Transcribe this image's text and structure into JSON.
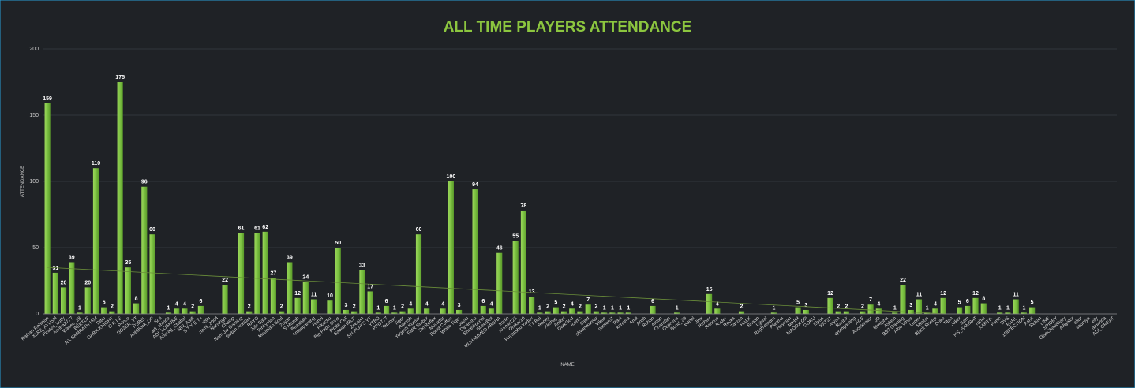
{
  "chart_data": {
    "type": "bar",
    "title": "ALL TIME PLAYERS ATTENDANCE",
    "x_label": "NAME",
    "y_label": "ATTENDANCE",
    "categories": [
      "Raihan Rahman",
      "XLR8_AYUSH",
      "Pirates_Luffy",
      "Aaritra2777",
      "Wasee_28",
      "BEETLE",
      "RX SAMRATH IAM",
      "Ditto",
      "DARK KNIGHT",
      "O R I E",
      "Prince",
      "DOZER_YT",
      "R3BEL",
      "AntiBlock_OP",
      "Sofi",
      "adi_shinde",
      "ADI_LOSHINE",
      "Anurag_Chahal",
      "NW_Aadi",
      "S T Y E T I",
      "rishi",
      "nami_2004",
      "Narsingh",
      "Champ",
      "Nam Jai Gaming",
      "Sultan Arastaa",
      "RAYO",
      "Jule Bala",
      "Tenkyman",
      "Mountain Soul",
      "Zoyan",
      "S Mazab",
      "Beastiaki",
      "Amongaming",
      "Hanni",
      "Pikachu",
      "Big Papa Sons",
      "Pirate Cell",
      "Sawan IRLP",
      "Zeeaan",
      "SN PLAYS YT",
      "YTBD",
      "PRO777",
      "Tanmay",
      "Tiger",
      "Rakesh",
      "Yogesh Kumar",
      "FMR Stuber",
      "SkyReflex",
      "Movixtar",
      "Boost Coffee",
      "White Tiger",
      "Jeetu",
      "Dipanshu",
      "Sheetkocool",
      "SheetBot",
      "MUHAMMED ARSHA",
      "Ironic",
      "Kumar123",
      "Omkar10",
      "Priyanshu Yadav",
      "TT Raj",
      "Rocky",
      "Akshay",
      "Aniket",
      "DarkGod",
      "Iconic",
      "Sabit",
      "shyamkumar",
      "Vikas",
      "gamer01",
      "Ravi",
      "kanaiya",
      "Amit",
      "Ansh",
      "Rohan",
      "Aman",
      "Chandan",
      "Cepheus",
      "Bond_29",
      "Badal",
      "Jinx",
      "Rishav",
      "Rancho",
      "Ryder",
      "Rocks",
      "Tarzan",
      "HALK",
      "Shaan",
      "Ujjwal",
      "Raghvendra",
      "Plasma",
      "Heyman",
      "MIHIR",
      "MADOX OP",
      "GOKU",
      "Elyas",
      "KAT21",
      "Aryan",
      "Ranbir",
      "vyomgaming",
      "ACE",
      "Accelerator",
      "JD",
      "MrAlpha",
      "Ashish",
      "BB7 Gaming",
      "Aloo Vibes",
      "Lucky",
      "Minion",
      "Black Sheep",
      "Duke",
      "Titan",
      "Joker",
      "Sam",
      "HS_SAMRAT",
      "rahul",
      "KARTIK",
      "Ponic",
      "DVS",
      "EARL",
      "1DIRECTION",
      "Ashit",
      "Rehan",
      "LINE",
      "SPIDEY",
      "OjasChaudhary",
      "Alligator",
      "ellur",
      "saumya",
      "elly",
      "amanda",
      "ADI_GREAT"
    ],
    "values": [
      159,
      31,
      20,
      39,
      1,
      20,
      110,
      5,
      2,
      175,
      35,
      8,
      96,
      60,
      0,
      1,
      4,
      4,
      2,
      6,
      0,
      0,
      22,
      0,
      61,
      2,
      61,
      62,
      27,
      2,
      39,
      12,
      24,
      11,
      0,
      10,
      50,
      3,
      2,
      33,
      17,
      1,
      6,
      1,
      2,
      4,
      60,
      4,
      0,
      4,
      100,
      3,
      0,
      94,
      6,
      4,
      46,
      0,
      55,
      78,
      13,
      1,
      2,
      5,
      2,
      4,
      2,
      7,
      2,
      1,
      1,
      1,
      1,
      0,
      0,
      6,
      0,
      0,
      1,
      0,
      0,
      0,
      15,
      4,
      0,
      0,
      2,
      0,
      0,
      0,
      1,
      0,
      0,
      5,
      3,
      0,
      0,
      12,
      2,
      2,
      0,
      2,
      7,
      4,
      0,
      1,
      22,
      3,
      11,
      1,
      4,
      12,
      0,
      5,
      6,
      12,
      8,
      0,
      1,
      1,
      11,
      1,
      5,
      0,
      0,
      0,
      0,
      0,
      0,
      0,
      0,
      0,
      0
    ],
    "color": "#7cc242",
    "ylim": [
      0,
      200
    ],
    "yticks": [
      0,
      50,
      100,
      150,
      200
    ],
    "grid": true,
    "trendline": true
  }
}
